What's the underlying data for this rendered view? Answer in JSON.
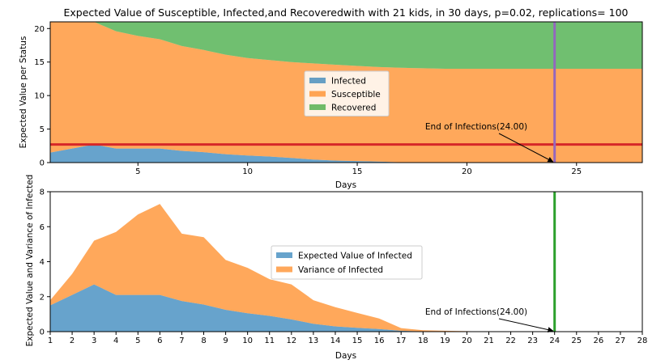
{
  "chart_data": [
    {
      "type": "area",
      "stacked": true,
      "title": "Expected Value of Susceptible, Infected,and Recoveredwith with 21 kids, in 30 days, p=0.02, replications= 100",
      "xlabel": "Days",
      "ylabel": "Expected Value per Status",
      "xlim": [
        1,
        28
      ],
      "ylim": [
        0,
        21
      ],
      "xticks": [
        5,
        10,
        15,
        20,
        25
      ],
      "yticks": [
        0,
        5,
        10,
        15,
        20
      ],
      "x": [
        1,
        2,
        3,
        4,
        5,
        6,
        7,
        8,
        9,
        10,
        11,
        12,
        13,
        14,
        15,
        16,
        17,
        18,
        19,
        20,
        21,
        22,
        23,
        24,
        25,
        26,
        27,
        28
      ],
      "series": [
        {
          "name": "Infected",
          "color": "#1f77b4",
          "values": [
            1.5,
            2.1,
            2.7,
            2.1,
            2.1,
            2.1,
            1.75,
            1.55,
            1.25,
            1.05,
            0.9,
            0.7,
            0.45,
            0.3,
            0.22,
            0.15,
            0.05,
            0.02,
            0,
            0,
            0,
            0,
            0,
            0,
            0,
            0,
            0,
            0
          ]
        },
        {
          "name": "Susceptible",
          "color": "#ff7f0e",
          "values": [
            19.5,
            18.9,
            18.3,
            17.5,
            16.8,
            16.3,
            15.65,
            15.25,
            14.85,
            14.55,
            14.4,
            14.3,
            14.35,
            14.3,
            14.2,
            14.1,
            14.1,
            14.05,
            14.0,
            14.0,
            14.0,
            14.0,
            14.0,
            14.0,
            14.0,
            14.0,
            14.0,
            14.0
          ]
        },
        {
          "name": "Recovered",
          "color": "#2ca02c",
          "values": [
            0,
            0,
            0,
            1.4,
            2.1,
            2.6,
            3.6,
            4.2,
            4.9,
            5.4,
            5.7,
            6.0,
            6.2,
            6.4,
            6.58,
            6.75,
            6.85,
            6.93,
            7.0,
            7.0,
            7.0,
            7.0,
            7.0,
            7.0,
            7.0,
            7.0,
            7.0,
            7.0
          ]
        }
      ],
      "hline": {
        "y": 2.7,
        "color": "#d62728"
      },
      "vline": {
        "x": 24,
        "color": "#9467bd"
      },
      "annotation": {
        "text": "End of Infections(24.00)",
        "xy": [
          24,
          0
        ],
        "xytext": [
          18,
          5
        ]
      },
      "legend": "center",
      "grid": false
    },
    {
      "type": "area",
      "stacked": true,
      "title": "",
      "xlabel": "Days",
      "ylabel": "Expected Value and Variance of Infected",
      "xlim": [
        1,
        28
      ],
      "ylim": [
        0,
        8
      ],
      "xticks": [
        1,
        2,
        3,
        4,
        5,
        6,
        7,
        8,
        9,
        10,
        11,
        12,
        13,
        14,
        15,
        16,
        17,
        18,
        19,
        20,
        21,
        22,
        23,
        24,
        25,
        26,
        27,
        28
      ],
      "yticks": [
        0,
        2,
        4,
        6,
        8
      ],
      "x": [
        1,
        2,
        3,
        4,
        5,
        6,
        7,
        8,
        9,
        10,
        11,
        12,
        13,
        14,
        15,
        16,
        17,
        18,
        19,
        20,
        21,
        22,
        23,
        24,
        25,
        26,
        27,
        28
      ],
      "series": [
        {
          "name": "Expected Value of Infected",
          "color": "#1f77b4",
          "values": [
            1.5,
            2.1,
            2.7,
            2.1,
            2.1,
            2.1,
            1.75,
            1.55,
            1.25,
            1.05,
            0.9,
            0.7,
            0.45,
            0.3,
            0.22,
            0.15,
            0.05,
            0.02,
            0,
            0,
            0,
            0,
            0,
            0,
            0,
            0,
            0,
            0
          ]
        },
        {
          "name": "Variance of Infected",
          "color": "#ff7f0e",
          "values": [
            0.3,
            1.2,
            2.5,
            3.6,
            4.6,
            5.2,
            3.85,
            3.85,
            2.85,
            2.6,
            2.1,
            2.0,
            1.35,
            1.1,
            0.85,
            0.6,
            0.15,
            0.06,
            0.05,
            0.03,
            0,
            0,
            0,
            0,
            0,
            0,
            0,
            0
          ]
        }
      ],
      "vline": {
        "x": 24,
        "color": "#2ca02c"
      },
      "annotation": {
        "text": "End of Infections(24.00)",
        "xy": [
          24,
          0
        ],
        "xytext": [
          18,
          1
        ]
      },
      "legend": "center",
      "grid": false
    }
  ]
}
